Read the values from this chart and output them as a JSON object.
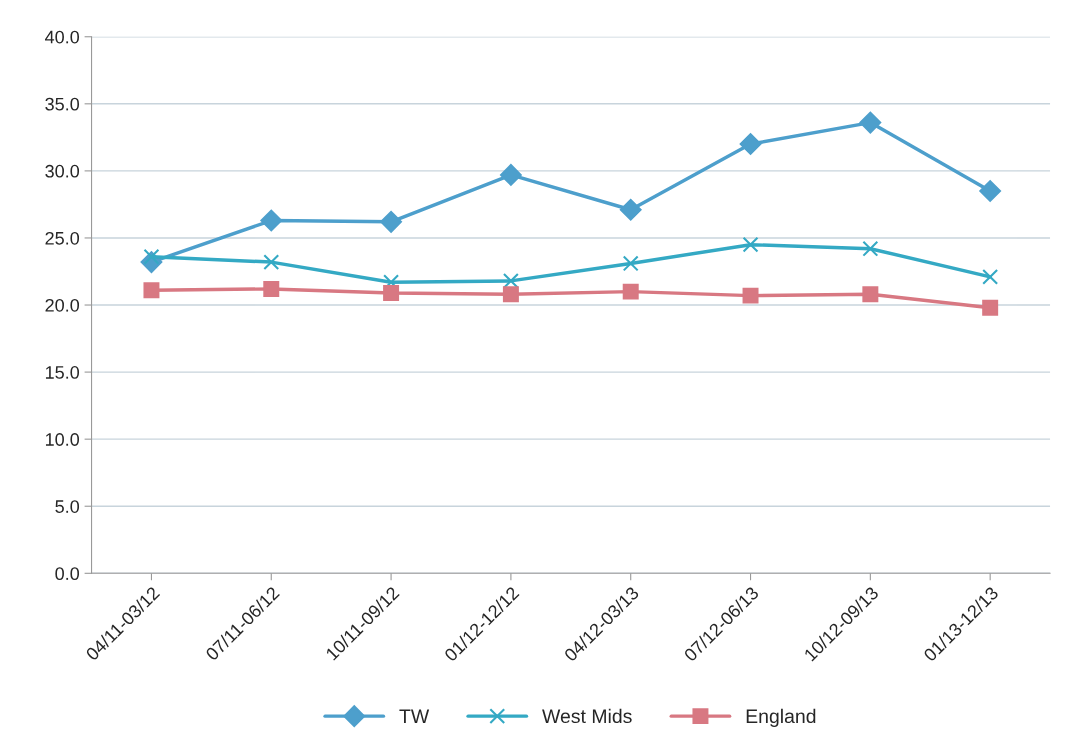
{
  "chart_data": {
    "type": "line",
    "categories": [
      "04/11-03/12",
      "07/11-06/12",
      "10/11-09/12",
      "01/12-12/12",
      "04/12-03/13",
      "07/12-06/13",
      "10/12-09/13",
      "01/13-12/13"
    ],
    "series": [
      {
        "name": "TW",
        "color": "#4d9fcc",
        "marker": "diamond",
        "values": [
          23.2,
          26.3,
          26.2,
          29.7,
          27.1,
          32.0,
          33.6,
          28.5
        ]
      },
      {
        "name": "West Mids",
        "color": "#34a9c4",
        "marker": "cross",
        "values": [
          23.6,
          23.2,
          21.7,
          21.8,
          23.1,
          24.5,
          24.2,
          22.1
        ]
      },
      {
        "name": "England",
        "color": "#d87882",
        "marker": "square",
        "values": [
          21.1,
          21.2,
          20.9,
          20.8,
          21.0,
          20.7,
          20.8,
          19.8
        ]
      }
    ],
    "ylim": [
      0,
      40
    ],
    "yticks": [
      {
        "value": 0,
        "label": "0.0"
      },
      {
        "value": 5,
        "label": "5.0"
      },
      {
        "value": 10,
        "label": "10.0"
      },
      {
        "value": 15,
        "label": "15.0"
      },
      {
        "value": 20,
        "label": "20.0"
      },
      {
        "value": 25,
        "label": "25.0"
      },
      {
        "value": 30,
        "label": "30.0"
      },
      {
        "value": 35,
        "label": "35.0"
      },
      {
        "value": 40,
        "label": "40.0"
      }
    ],
    "grid": "y",
    "legend": "bottom",
    "line_style": "solid"
  }
}
